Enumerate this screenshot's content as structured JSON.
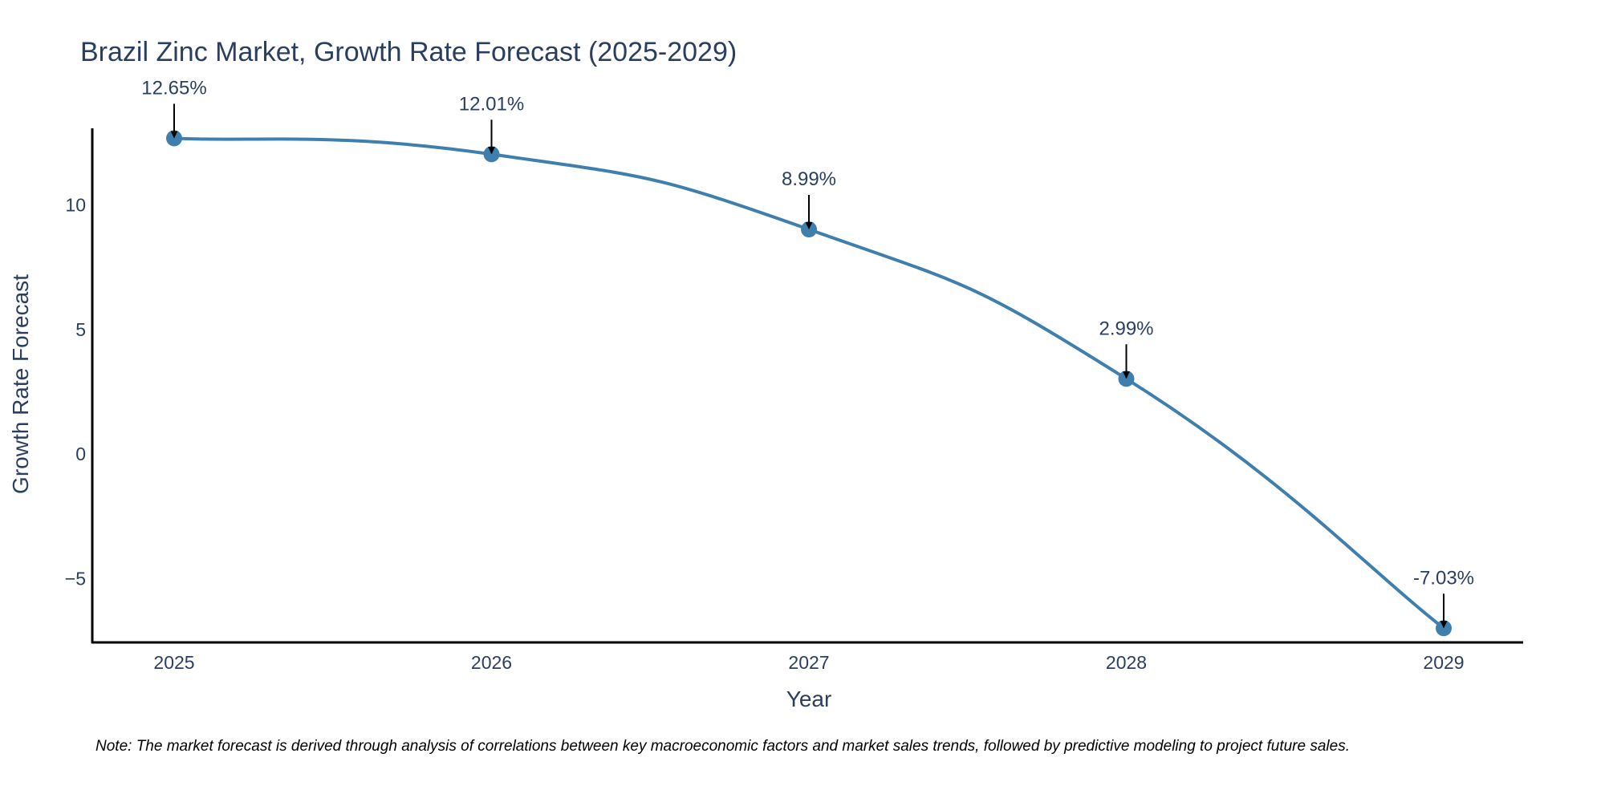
{
  "chart_data": {
    "type": "line",
    "title": "Brazil Zinc Market, Growth Rate Forecast (2025-2029)",
    "xlabel": "Year",
    "ylabel": "Growth Rate Forecast",
    "categories": [
      "2025",
      "2026",
      "2027",
      "2028",
      "2029"
    ],
    "series": [
      {
        "name": "Growth Rate Forecast",
        "values": [
          12.65,
          12.01,
          8.99,
          2.99,
          -7.03
        ],
        "labels": [
          "12.65%",
          "12.01%",
          "8.99%",
          "2.99%",
          "-7.03%"
        ]
      }
    ],
    "yticks": [
      -5,
      0,
      5,
      10
    ],
    "ytick_labels": [
      "−5",
      "0",
      "5",
      "10"
    ],
    "ylim": [
      -7.6,
      13.05
    ],
    "grid": false,
    "line_color": "#3f7fad",
    "annotation_arrow_color": "#000000",
    "note": "Note: The market forecast is derived through analysis of correlations between key macroeconomic factors and market sales trends, followed by predictive modeling to project future sales."
  }
}
